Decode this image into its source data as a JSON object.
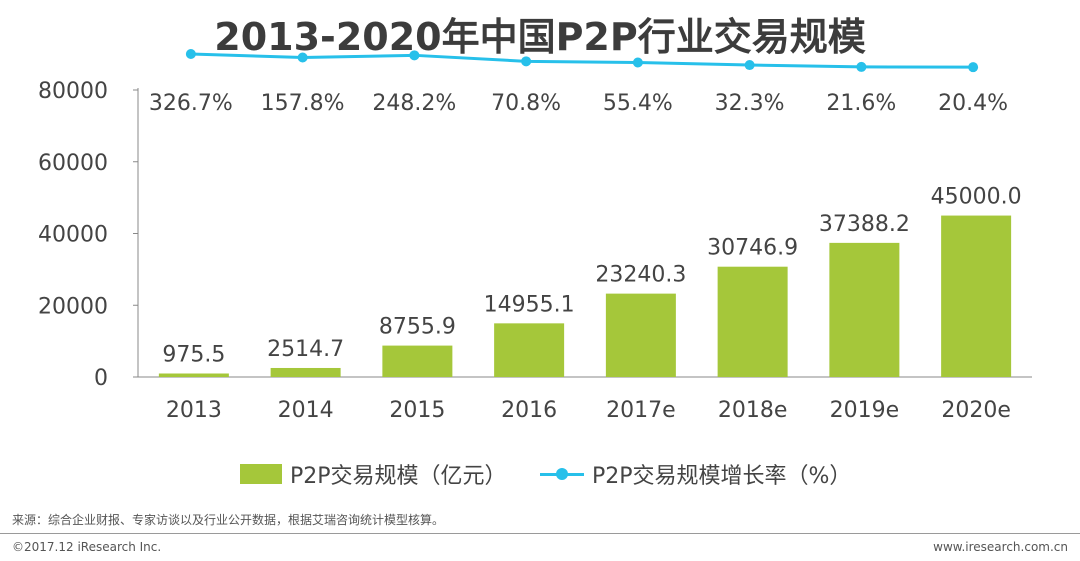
{
  "chart_data": {
    "type": "bar+line",
    "title": "2013-2020年中国P2P行业交易规模",
    "categories": [
      "2013",
      "2014",
      "2015",
      "2016",
      "2017e",
      "2018e",
      "2019e",
      "2020e"
    ],
    "series": [
      {
        "name": "P2P交易规模（亿元）",
        "type": "bar",
        "values": [
          975.5,
          2514.7,
          8755.9,
          14955.1,
          23240.3,
          30746.9,
          37388.2,
          45000.0
        ],
        "labels": [
          "975.5",
          "2514.7",
          "8755.9",
          "14955.1",
          "23240.3",
          "30746.9",
          "37388.2",
          "45000.0"
        ],
        "color": "#a5c73a"
      },
      {
        "name": "P2P交易规模增长率（%）",
        "type": "line",
        "values": [
          326.7,
          157.8,
          248.2,
          70.8,
          55.4,
          32.3,
          21.6,
          20.4
        ],
        "labels": [
          "326.7%",
          "157.8%",
          "248.2%",
          "70.8%",
          "55.4%",
          "32.3%",
          "21.6%",
          "20.4%"
        ],
        "color": "#27c0ea"
      }
    ],
    "ylim": [
      0,
      80000
    ],
    "yticks": [
      "0",
      "20000",
      "40000",
      "60000",
      "80000"
    ],
    "xlabel": "",
    "ylabel": "",
    "legend_position": "bottom"
  },
  "footer": {
    "source": "来源：综合企业财报、专家访谈以及行业公开数据，根据艾瑞咨询统计模型核算。",
    "copyright": "©2017.12 iResearch Inc.",
    "website": "www.iresearch.com.cn"
  }
}
